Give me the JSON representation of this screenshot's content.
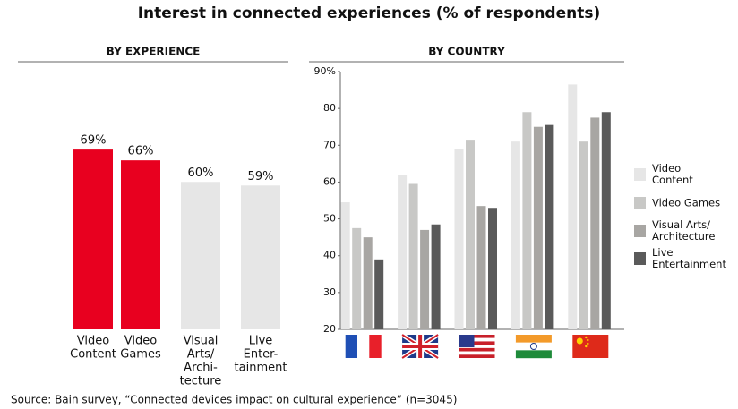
{
  "title": "Interest in connected experiences (% of respondents)",
  "source": "Source: Bain survey, “Connected devices impact on cultural experience” (n=3045)",
  "chart_data": [
    {
      "type": "bar",
      "title": "BY EXPERIENCE",
      "categories": [
        [
          "Video",
          "Content"
        ],
        [
          "Video",
          "Games"
        ],
        [
          "Visual",
          "Arts/",
          "Archi-",
          "tecture"
        ],
        [
          "Live",
          "Enter-",
          "tainment"
        ]
      ],
      "values": [
        69,
        66,
        60,
        59
      ],
      "value_labels": [
        "69%",
        "66%",
        "60%",
        "59%"
      ],
      "colors": [
        "#e8001f",
        "#e8001f",
        "#e6e6e6",
        "#e6e6e6"
      ],
      "ylim": [
        19,
        75
      ]
    },
    {
      "type": "grouped-bar",
      "title": "BY COUNTRY",
      "categories": [
        null,
        null,
        null,
        null,
        null
      ],
      "series": [
        {
          "name": [
            "Video",
            "Content"
          ],
          "color": "#e6e6e6",
          "values": [
            54.5,
            62,
            69,
            71,
            86.5
          ]
        },
        {
          "name": [
            "Video Games"
          ],
          "color": "#c8c8c6",
          "values": [
            47.5,
            59.5,
            71.5,
            79,
            71
          ]
        },
        {
          "name": [
            "Visual Arts/",
            "Architecture"
          ],
          "color": "#a8a6a3",
          "values": [
            45,
            47,
            53.5,
            75,
            77.5
          ]
        },
        {
          "name": [
            "Live",
            "Entertainment"
          ],
          "color": "#5a5a5a",
          "values": [
            39,
            48.5,
            53,
            75.5,
            79
          ]
        }
      ],
      "ylim": [
        20,
        90
      ],
      "yticks": [
        20,
        30,
        40,
        50,
        60,
        70,
        80,
        {
          "value": 90,
          "label": "90%"
        }
      ]
    }
  ]
}
